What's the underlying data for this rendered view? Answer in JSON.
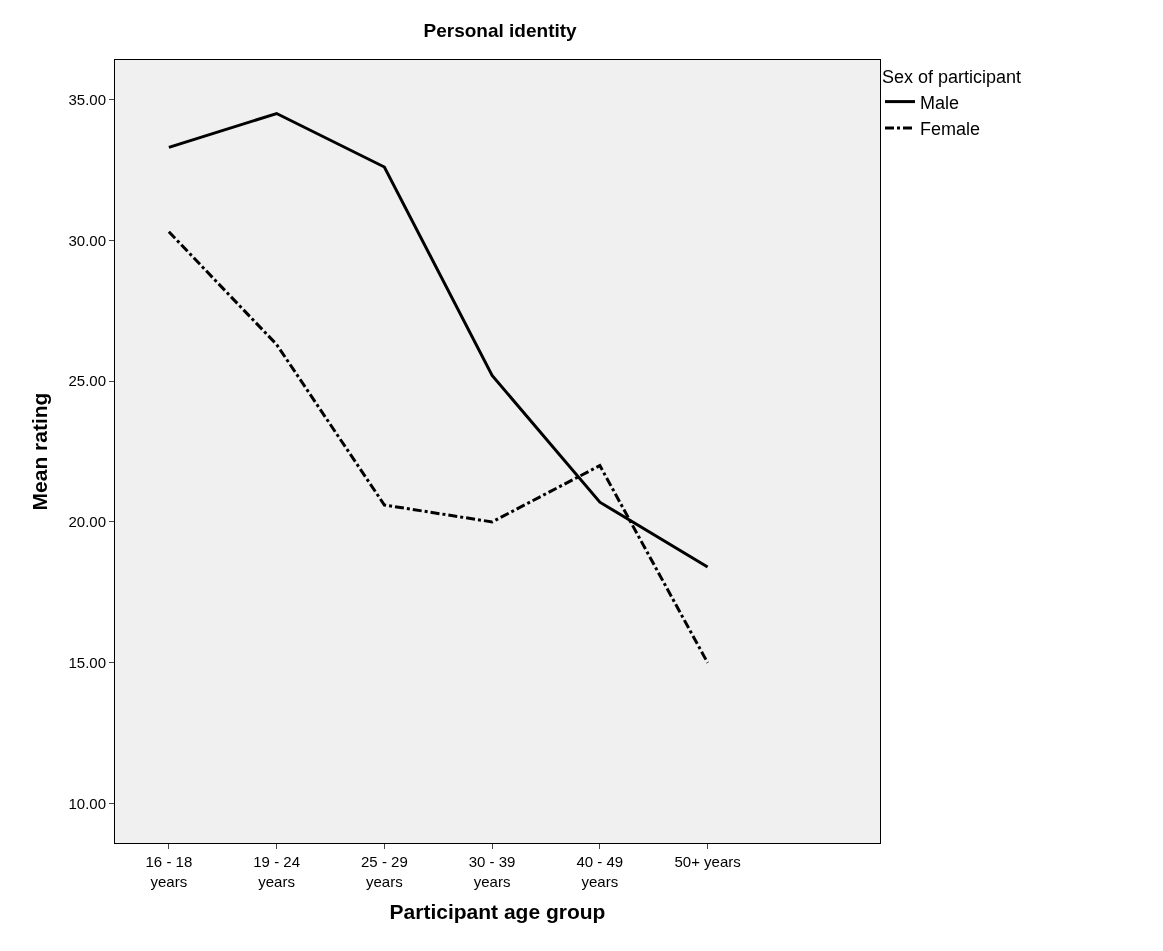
{
  "chart_data": {
    "type": "line",
    "title": "Personal identity",
    "xlabel": "Participant age group",
    "ylabel": "Mean rating",
    "legend_title": "Sex of participant",
    "categories": [
      "16 - 18\nyears",
      "19 - 24\nyears",
      "25 - 29\nyears",
      "30 - 39\nyears",
      "40 - 49\nyears",
      "50+ years"
    ],
    "series": [
      {
        "name": "Male",
        "color": "#000000",
        "line_style": "solid",
        "values": [
          33.3,
          34.5,
          32.6,
          25.2,
          20.7,
          18.4
        ]
      },
      {
        "name": "Female",
        "color": "#000000",
        "line_style": "dashdot",
        "values": [
          30.3,
          26.3,
          20.6,
          20.0,
          22.0,
          15.0
        ]
      }
    ],
    "ylim": [
      8.6,
      36.4
    ],
    "yticks": [
      {
        "value": 10,
        "label": "10.00"
      },
      {
        "value": 15,
        "label": "15.00"
      },
      {
        "value": 20,
        "label": "20.00"
      },
      {
        "value": 25,
        "label": "25.00"
      },
      {
        "value": 30,
        "label": "30.00"
      },
      {
        "value": 35,
        "label": "35.00"
      }
    ],
    "grid": false,
    "legend": "top right",
    "marker": "none"
  }
}
